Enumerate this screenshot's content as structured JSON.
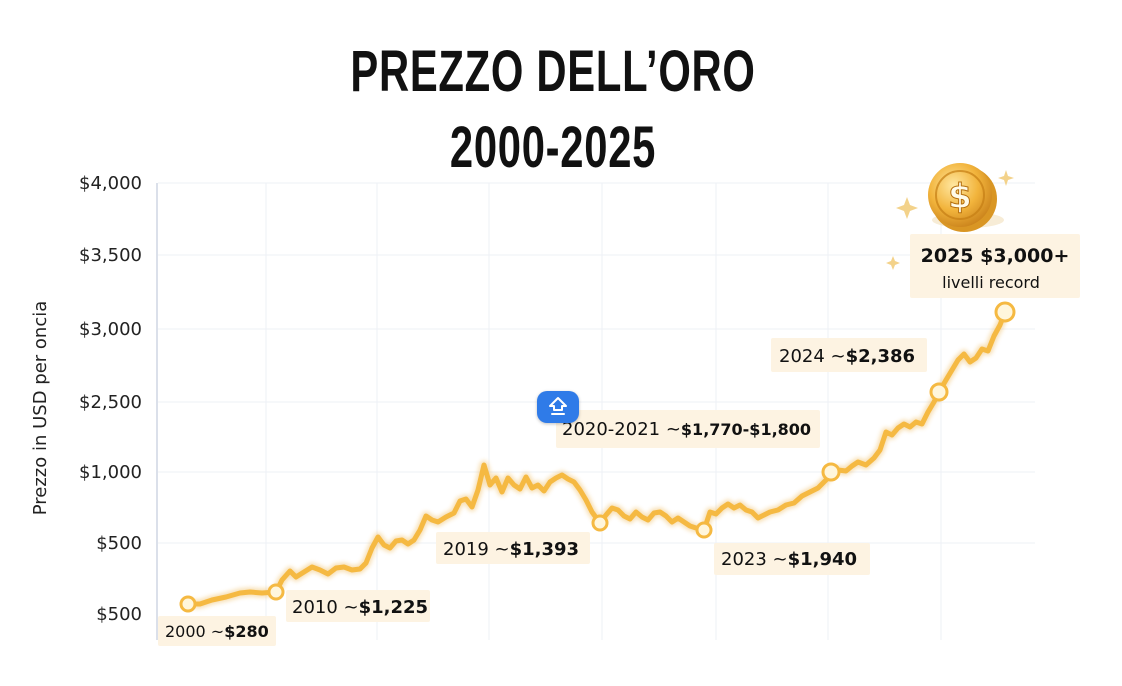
{
  "title": {
    "line1": "PREZZO DELL’ORO",
    "line2": "2000-2025"
  },
  "colors": {
    "line": "#f5b942",
    "line_shadow": "#e9a52c",
    "label_bg": "#fdf3e2",
    "marker_fill": "#fff6dc"
  },
  "overlay": {
    "button_icon": "share-upload-icon"
  },
  "chart_data": {
    "type": "line",
    "title": "PREZZO DELL’ORO 2000-2025",
    "xlabel": "",
    "ylabel": "Prezzo in USD per oncia",
    "y_tick_labels": [
      "$500",
      "$500",
      "$1,000",
      "$2,500",
      "$3,000",
      "$3,500",
      "$4,000"
    ],
    "xlim": [
      2000,
      2025
    ],
    "grid": true,
    "legend": "none",
    "note": "y axis printed labels are non-linear/inconsistent; x and y values below are the annotated data points",
    "series": [
      {
        "x": [
          2000,
          2010,
          2019,
          2020.5,
          2023,
          2024,
          2025
        ],
        "values": [
          280,
          1225,
          1393,
          1785,
          1940,
          2386,
          3000
        ]
      }
    ],
    "annotations": [
      {
        "year": "2000",
        "text_pre": "2000 ~",
        "text_val": "$280"
      },
      {
        "year": "2010",
        "text_pre": "2010 ~",
        "text_val": "$1,225"
      },
      {
        "year": "2019",
        "text_pre": "2019 ~",
        "text_val": "$1,393"
      },
      {
        "year": "2020-2021",
        "text_pre": "2020-2021 ~",
        "text_val": "$1,770-$1,800"
      },
      {
        "year": "2023",
        "text_pre": "2023 ~",
        "text_val": "$1,940"
      },
      {
        "year": "2024",
        "text_pre": "2024 ~",
        "text_val": "$2,386"
      },
      {
        "year": "2025",
        "text_pre": "2025 ",
        "text_val": "$3,000+",
        "sub": "livelli record"
      }
    ]
  }
}
